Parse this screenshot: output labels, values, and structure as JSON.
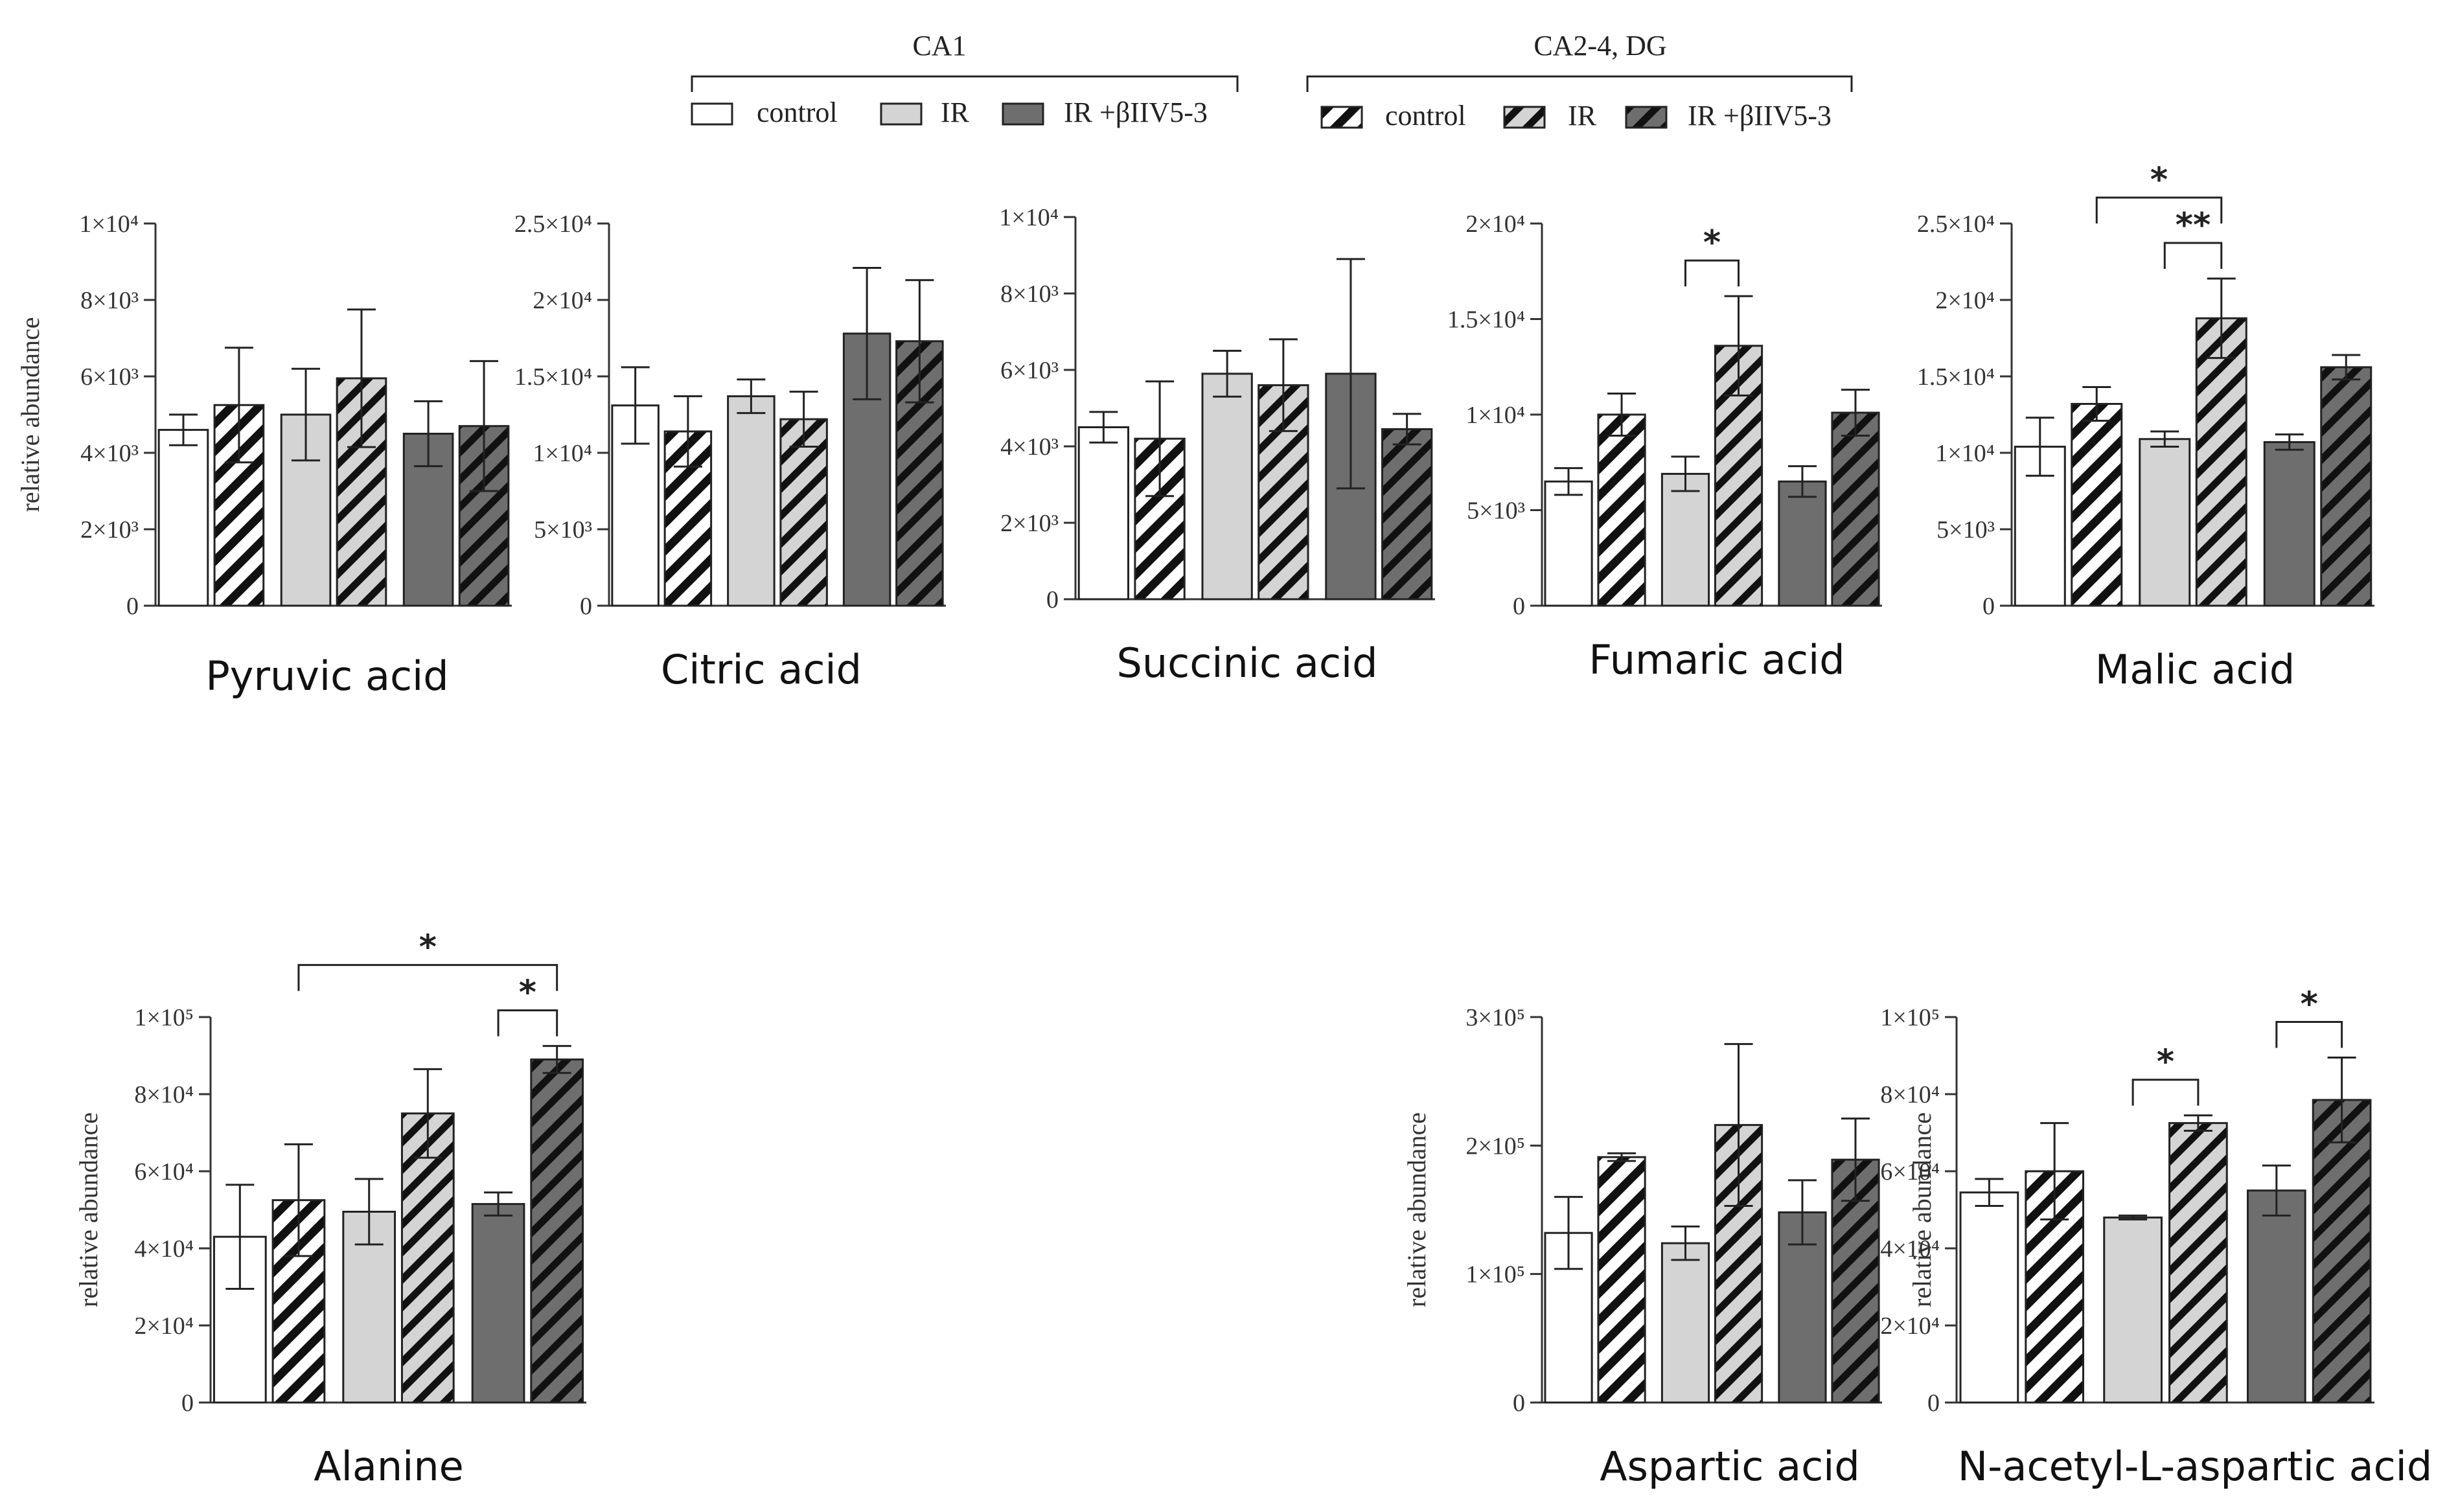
{
  "legend": {
    "ca1": {
      "title": "CA1",
      "items": [
        {
          "label": "control",
          "fill": "#ffffff",
          "hatched": false
        },
        {
          "label": "IR",
          "fill": "#d4d4d4",
          "hatched": false
        },
        {
          "label": "IR +βIIV5-3",
          "fill": "#6e6e6e",
          "hatched": false
        }
      ]
    },
    "ca24": {
      "title": "CA2-4, DG",
      "items": [
        {
          "label": "control",
          "fill": "#ffffff",
          "hatched": true
        },
        {
          "label": "IR",
          "fill": "#d4d4d4",
          "hatched": true
        },
        {
          "label": "IR +βIIV5-3",
          "fill": "#6e6e6e",
          "hatched": true
        }
      ]
    }
  },
  "colors": {
    "control": "#ffffff",
    "ir": "#d4d4d4",
    "ir_b": "#6e6e6e",
    "stroke": "#222222"
  },
  "chart_data": [
    {
      "type": "bar",
      "title": "Pyruvic acid",
      "ylabel": "relative abundance",
      "ylim": [
        0,
        10000
      ],
      "yticks": [
        "0",
        "2×10³",
        "4×10³",
        "6×10³",
        "8×10³",
        "1×10⁴"
      ],
      "series": [
        {
          "name": "CA1 control",
          "value": 4600,
          "err": 400
        },
        {
          "name": "CA2-4, DG control",
          "value": 5250,
          "err": 1500
        },
        {
          "name": "CA1 IR",
          "value": 5000,
          "err": 1200
        },
        {
          "name": "CA2-4, DG IR",
          "value": 5950,
          "err": 1800
        },
        {
          "name": "CA1 IR +βIIV5-3",
          "value": 4500,
          "err": 850
        },
        {
          "name": "CA2-4, DG IR +βIIV5-3",
          "value": 4700,
          "err": 1700
        }
      ],
      "significance": []
    },
    {
      "type": "bar",
      "title": "Citric acid",
      "ylabel": "",
      "ylim": [
        0,
        25000
      ],
      "yticks": [
        "0",
        "5×10³",
        "1×10⁴",
        "1.5×10⁴",
        "2×10⁴",
        "2.5×10⁴"
      ],
      "series": [
        {
          "name": "CA1 control",
          "value": 13100,
          "err": 2500
        },
        {
          "name": "CA2-4, DG control",
          "value": 11400,
          "err": 2300
        },
        {
          "name": "CA1 IR",
          "value": 13700,
          "err": 1100
        },
        {
          "name": "CA2-4, DG IR",
          "value": 12200,
          "err": 1800
        },
        {
          "name": "CA1 IR +βIIV5-3",
          "value": 17800,
          "err": 4300
        },
        {
          "name": "CA2-4, DG IR +βIIV5-3",
          "value": 17300,
          "err": 4000
        }
      ],
      "significance": []
    },
    {
      "type": "bar",
      "title": "Succinic acid",
      "ylabel": "",
      "ylim": [
        0,
        10000
      ],
      "yticks": [
        "0",
        "2×10³",
        "4×10³",
        "6×10³",
        "8×10³",
        "1×10⁴"
      ],
      "series": [
        {
          "name": "CA1 control",
          "value": 4500,
          "err": 400
        },
        {
          "name": "CA2-4, DG control",
          "value": 4200,
          "err": 1500
        },
        {
          "name": "CA1 IR",
          "value": 5900,
          "err": 600
        },
        {
          "name": "CA2-4, DG IR",
          "value": 5600,
          "err": 1200
        },
        {
          "name": "CA1 IR +βIIV5-3",
          "value": 5900,
          "err": 3000
        },
        {
          "name": "CA2-4, DG IR +βIIV5-3",
          "value": 4450,
          "err": 400
        }
      ],
      "significance": []
    },
    {
      "type": "bar",
      "title": "Fumaric acid",
      "ylabel": "",
      "ylim": [
        0,
        20000
      ],
      "yticks": [
        "0",
        "5×10³",
        "1×10⁴",
        "1.5×10⁴",
        "2×10⁴"
      ],
      "series": [
        {
          "name": "CA1 control",
          "value": 6500,
          "err": 700
        },
        {
          "name": "CA2-4, DG control",
          "value": 10000,
          "err": 1100
        },
        {
          "name": "CA1 IR",
          "value": 6900,
          "err": 900
        },
        {
          "name": "CA2-4, DG IR",
          "value": 13600,
          "err": 2600
        },
        {
          "name": "CA1 IR +βIIV5-3",
          "value": 6500,
          "err": 800
        },
        {
          "name": "CA2-4, DG IR +βIIV5-3",
          "value": 10100,
          "err": 1200
        }
      ],
      "significance": [
        {
          "from": 2,
          "to": 3,
          "label": "*",
          "level": 0
        }
      ]
    },
    {
      "type": "bar",
      "title": "Malic acid",
      "ylabel": "",
      "ylim": [
        0,
        25000
      ],
      "yticks": [
        "0",
        "5×10³",
        "1×10⁴",
        "1.5×10⁴",
        "2×10⁴",
        "2.5×10⁴"
      ],
      "series": [
        {
          "name": "CA1 control",
          "value": 10400,
          "err": 1900
        },
        {
          "name": "CA2-4, DG control",
          "value": 13200,
          "err": 1100
        },
        {
          "name": "CA1 IR",
          "value": 10900,
          "err": 500
        },
        {
          "name": "CA2-4, DG IR",
          "value": 18800,
          "err": 2600
        },
        {
          "name": "CA1 IR +βIIV5-3",
          "value": 10700,
          "err": 500
        },
        {
          "name": "CA2-4, DG IR +βIIV5-3",
          "value": 15600,
          "err": 800
        }
      ],
      "significance": [
        {
          "from": 2,
          "to": 3,
          "label": "**",
          "level": 0
        },
        {
          "from": 1,
          "to": 3,
          "label": "*",
          "level": 1
        }
      ]
    },
    {
      "type": "bar",
      "title": "Alanine",
      "ylabel": "relative abundance",
      "ylim": [
        0,
        100000
      ],
      "yticks": [
        "0",
        "2×10⁴",
        "4×10⁴",
        "6×10⁴",
        "8×10⁴",
        "1×10⁵"
      ],
      "series": [
        {
          "name": "CA1 control",
          "value": 43000,
          "err": 13500
        },
        {
          "name": "CA2-4, DG control",
          "value": 52500,
          "err": 14500
        },
        {
          "name": "CA1 IR",
          "value": 49500,
          "err": 8500
        },
        {
          "name": "CA2-4, DG IR",
          "value": 75000,
          "err": 11500
        },
        {
          "name": "CA1 IR +βIIV5-3",
          "value": 51500,
          "err": 3000
        },
        {
          "name": "CA2-4, DG IR +βIIV5-3",
          "value": 89000,
          "err": 3500
        }
      ],
      "significance": [
        {
          "from": 4,
          "to": 5,
          "label": "*",
          "level": 0
        },
        {
          "from": 1,
          "to": 5,
          "label": "*",
          "level": 1
        }
      ]
    },
    {
      "type": "bar",
      "title": "Aspartic acid",
      "ylabel": "relative abundance",
      "ylim": [
        0,
        300000
      ],
      "yticks": [
        "0",
        "1×10⁵",
        "2×10⁵",
        "3×10⁵"
      ],
      "series": [
        {
          "name": "CA1 control",
          "value": 132000,
          "err": 28000
        },
        {
          "name": "CA2-4, DG control",
          "value": 191000,
          "err": 3000
        },
        {
          "name": "CA1 IR",
          "value": 124000,
          "err": 13000
        },
        {
          "name": "CA2-4, DG IR",
          "value": 216000,
          "err": 63000
        },
        {
          "name": "CA1 IR +βIIV5-3",
          "value": 148000,
          "err": 25000
        },
        {
          "name": "CA2-4, DG IR +βIIV5-3",
          "value": 189000,
          "err": 32000
        }
      ],
      "significance": []
    },
    {
      "type": "bar",
      "title": "N-acetyl-L-aspartic acid",
      "ylabel": "relative abundance",
      "ylim": [
        0,
        100000
      ],
      "yticks": [
        "0",
        "2×10⁴",
        "4×10⁴",
        "6×10⁴",
        "8×10⁴",
        "1×10⁵"
      ],
      "series": [
        {
          "name": "CA1 control",
          "value": 54500,
          "err": 3500
        },
        {
          "name": "CA2-4, DG control",
          "value": 60000,
          "err": 12500
        },
        {
          "name": "CA1 IR",
          "value": 48000,
          "err": 500
        },
        {
          "name": "CA2-4, DG IR",
          "value": 72500,
          "err": 2000
        },
        {
          "name": "CA1 IR +βIIV5-3",
          "value": 55000,
          "err": 6500
        },
        {
          "name": "CA2-4, DG IR +βIIV5-3",
          "value": 78500,
          "err": 11000
        }
      ],
      "significance": [
        {
          "from": 2,
          "to": 3,
          "label": "*",
          "level": 0
        },
        {
          "from": 4,
          "to": 5,
          "label": "*",
          "level": 0
        }
      ]
    }
  ]
}
